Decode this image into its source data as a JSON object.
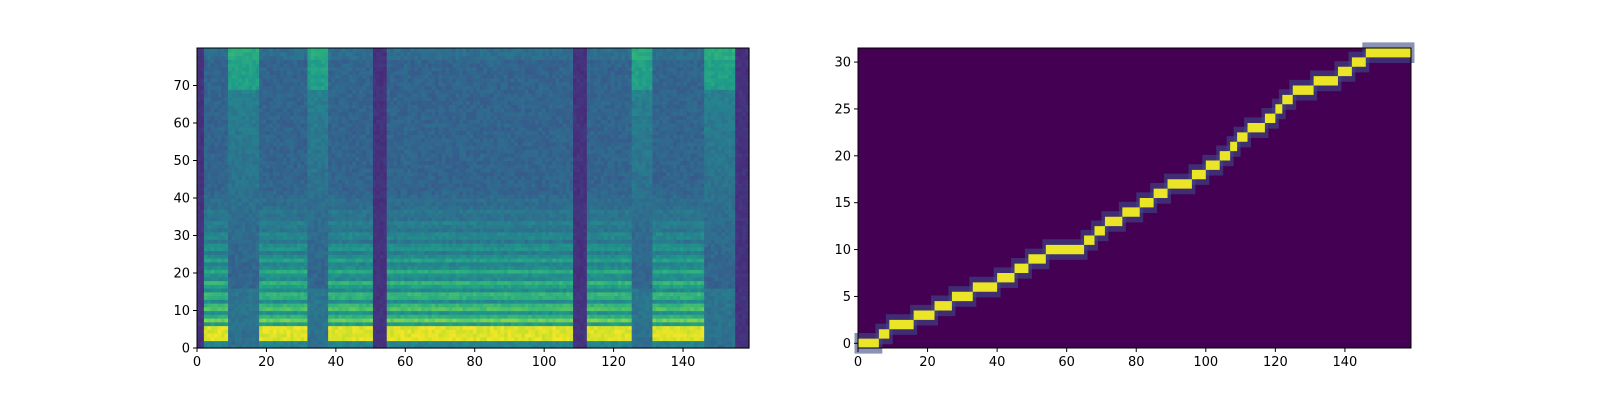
{
  "chart_data": [
    {
      "type": "heatmap",
      "title": "",
      "xlabel": "",
      "ylabel": "",
      "colormap": "viridis",
      "xlim": [
        0,
        159
      ],
      "ylim": [
        0,
        80
      ],
      "xticks": [
        0,
        20,
        40,
        60,
        80,
        100,
        120,
        140
      ],
      "yticks": [
        0,
        10,
        20,
        30,
        40,
        50,
        60,
        70
      ],
      "xtick_labels": [
        "0",
        "20",
        "40",
        "60",
        "80",
        "100",
        "120",
        "140"
      ],
      "ytick_labels": [
        "0",
        "10",
        "20",
        "30",
        "40",
        "50",
        "60",
        "70"
      ],
      "shape": [
        80,
        160
      ],
      "silence_columns": [
        [
          0,
          1
        ],
        [
          51,
          54
        ],
        [
          109,
          112
        ],
        [
          156,
          159
        ]
      ],
      "voiced_segments": [
        [
          0,
          8
        ],
        [
          18,
          31
        ],
        [
          38,
          51
        ],
        [
          55,
          109
        ],
        [
          112,
          125
        ],
        [
          132,
          146
        ]
      ],
      "grid": false,
      "legend": "none"
    },
    {
      "type": "heatmap",
      "title": "",
      "xlabel": "",
      "ylabel": "",
      "colormap": "viridis",
      "xlim": [
        0,
        159
      ],
      "ylim": [
        -0.5,
        31.5
      ],
      "xticks": [
        0,
        20,
        40,
        60,
        80,
        100,
        120,
        140
      ],
      "yticks": [
        0,
        5,
        10,
        15,
        20,
        25,
        30
      ],
      "xtick_labels": [
        "0",
        "20",
        "40",
        "60",
        "80",
        "100",
        "120",
        "140"
      ],
      "ytick_labels": [
        "0",
        "5",
        "10",
        "15",
        "20",
        "25",
        "30"
      ],
      "shape": [
        32,
        160
      ],
      "alignment_path": [
        {
          "row": 0,
          "x_start": 0,
          "x_end": 6
        },
        {
          "row": 1,
          "x_start": 6,
          "x_end": 9
        },
        {
          "row": 2,
          "x_start": 9,
          "x_end": 16
        },
        {
          "row": 3,
          "x_start": 16,
          "x_end": 22
        },
        {
          "row": 4,
          "x_start": 22,
          "x_end": 27
        },
        {
          "row": 5,
          "x_start": 27,
          "x_end": 33
        },
        {
          "row": 6,
          "x_start": 33,
          "x_end": 40
        },
        {
          "row": 7,
          "x_start": 40,
          "x_end": 45
        },
        {
          "row": 8,
          "x_start": 45,
          "x_end": 49
        },
        {
          "row": 9,
          "x_start": 49,
          "x_end": 54
        },
        {
          "row": 10,
          "x_start": 54,
          "x_end": 65
        },
        {
          "row": 11,
          "x_start": 65,
          "x_end": 68
        },
        {
          "row": 12,
          "x_start": 68,
          "x_end": 71
        },
        {
          "row": 13,
          "x_start": 71,
          "x_end": 76
        },
        {
          "row": 14,
          "x_start": 76,
          "x_end": 81
        },
        {
          "row": 15,
          "x_start": 81,
          "x_end": 85
        },
        {
          "row": 16,
          "x_start": 85,
          "x_end": 89
        },
        {
          "row": 17,
          "x_start": 89,
          "x_end": 96
        },
        {
          "row": 18,
          "x_start": 96,
          "x_end": 100
        },
        {
          "row": 19,
          "x_start": 100,
          "x_end": 104
        },
        {
          "row": 20,
          "x_start": 104,
          "x_end": 107
        },
        {
          "row": 21,
          "x_start": 107,
          "x_end": 109
        },
        {
          "row": 22,
          "x_start": 109,
          "x_end": 112
        },
        {
          "row": 23,
          "x_start": 112,
          "x_end": 117
        },
        {
          "row": 24,
          "x_start": 117,
          "x_end": 120
        },
        {
          "row": 25,
          "x_start": 120,
          "x_end": 122
        },
        {
          "row": 26,
          "x_start": 122,
          "x_end": 125
        },
        {
          "row": 27,
          "x_start": 125,
          "x_end": 131
        },
        {
          "row": 28,
          "x_start": 131,
          "x_end": 138
        },
        {
          "row": 29,
          "x_start": 138,
          "x_end": 142
        },
        {
          "row": 30,
          "x_start": 142,
          "x_end": 146
        },
        {
          "row": 31,
          "x_start": 146,
          "x_end": 159
        }
      ],
      "grid": false,
      "legend": "none"
    }
  ]
}
